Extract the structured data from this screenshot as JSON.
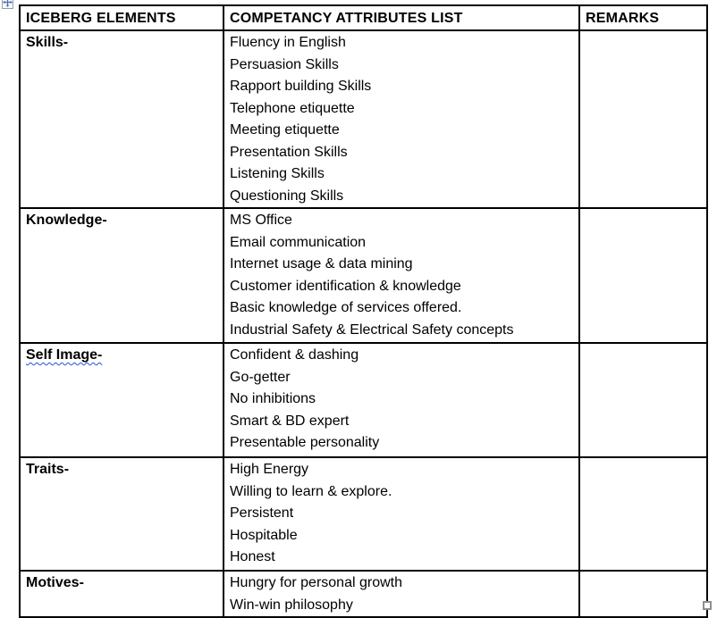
{
  "document": {
    "type": "word-document-table-page"
  },
  "handles": {
    "move_handle_icon": "table-move-handle",
    "resize_handle_icon": "table-resize-handle"
  },
  "colors": {
    "border": "#000000",
    "text": "#000000",
    "grammar_squiggle": "#2b4fd7",
    "move_arrow": "#4a6fbd",
    "resize_handle_border": "#8f8f8f"
  },
  "table": {
    "headers": [
      "ICEBERG ELEMENTS",
      "COMPETANCY ATTRIBUTES LIST",
      "REMARKS"
    ],
    "sections": [
      {
        "label": "Skills-",
        "items": [
          "Fluency in English",
          "Persuasion Skills",
          "Rapport building Skills",
          "Telephone etiquette",
          "Meeting etiquette",
          "Presentation Skills",
          "Listening Skills",
          "Questioning Skills"
        ],
        "remarks": ""
      },
      {
        "label": "Knowledge-",
        "items": [
          "MS Office",
          "Email communication",
          "Internet usage & data mining",
          "Customer identification & knowledge",
          "Basic knowledge of services offered.",
          "Industrial Safety & Electrical Safety concepts"
        ],
        "remarks": ""
      },
      {
        "label": "Self Image-",
        "spellcheck_underline": true,
        "items": [
          "Confident & dashing",
          "Go-getter",
          "No inhibitions",
          "Smart & BD expert",
          "Presentable personality"
        ],
        "remarks": ""
      },
      {
        "label": "Traits-",
        "items": [
          "High Energy",
          "Willing to learn & explore.",
          "Persistent",
          "Hospitable",
          "Honest"
        ],
        "remarks": ""
      },
      {
        "label": "Motives-",
        "items": [
          "Hungry for personal growth",
          "Win-win philosophy"
        ],
        "remarks": ""
      }
    ]
  }
}
